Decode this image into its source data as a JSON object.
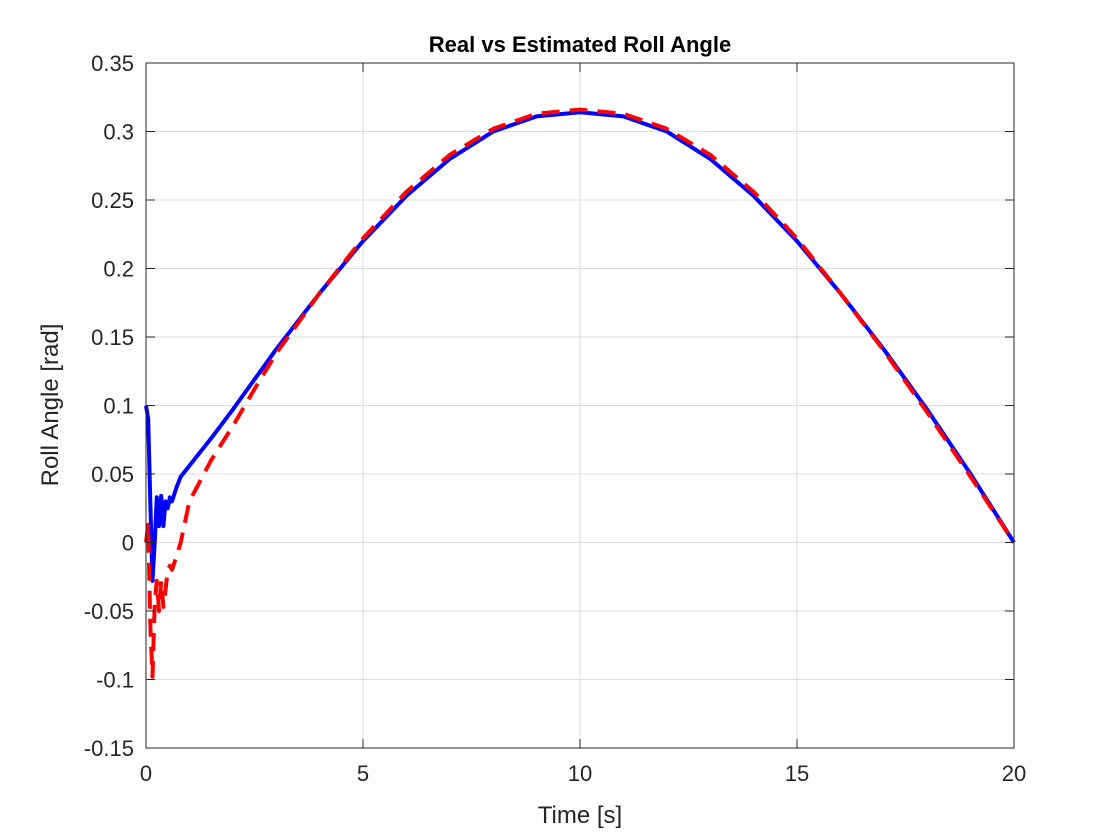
{
  "chart_data": {
    "type": "line",
    "title": "Real vs Estimated Roll Angle",
    "xlabel": "Time [s]",
    "ylabel": "Roll Angle [rad]",
    "xlim": [
      0,
      20
    ],
    "ylim": [
      -0.15,
      0.35
    ],
    "xticks": [
      "0",
      "5",
      "10",
      "15",
      "20"
    ],
    "yticks": [
      "-0.15",
      "-0.1",
      "-0.05",
      "0",
      "0.05",
      "0.1",
      "0.15",
      "0.2",
      "0.25",
      "0.3",
      "0.35"
    ],
    "grid": true,
    "legend": "none",
    "series": [
      {
        "style": "solid",
        "color": "#0000ff",
        "x": [
          0,
          0.05,
          0.1,
          0.15,
          0.2,
          0.25,
          0.3,
          0.35,
          0.4,
          0.45,
          0.5,
          0.55,
          0.6,
          0.7,
          0.8,
          1,
          1.5,
          2,
          3,
          4,
          5,
          6,
          7,
          8,
          9,
          10,
          11,
          12,
          13,
          14,
          15,
          16,
          17,
          18,
          19,
          20
        ],
        "y": [
          0.1,
          0.09,
          0.03,
          -0.028,
          0.0,
          0.033,
          0.012,
          0.034,
          0.012,
          0.03,
          0.025,
          0.033,
          0.03,
          0.04,
          0.048,
          0.056,
          0.076,
          0.097,
          0.141,
          0.182,
          0.22,
          0.253,
          0.28,
          0.3,
          0.311,
          0.314,
          0.311,
          0.3,
          0.28,
          0.253,
          0.22,
          0.182,
          0.141,
          0.097,
          0.05,
          0.0
        ]
      },
      {
        "style": "dashed",
        "color": "#ff0000",
        "x": [
          0,
          0.05,
          0.1,
          0.15,
          0.2,
          0.25,
          0.3,
          0.35,
          0.4,
          0.45,
          0.5,
          0.55,
          0.6,
          0.7,
          0.8,
          1,
          1.5,
          2,
          2.5,
          3,
          4,
          5,
          6,
          7,
          8,
          9,
          10,
          11,
          12,
          13,
          14,
          15,
          16,
          17,
          18,
          19,
          20
        ],
        "y": [
          0.0,
          0.013,
          -0.06,
          -0.098,
          -0.045,
          -0.028,
          -0.05,
          -0.028,
          -0.047,
          -0.035,
          -0.02,
          -0.017,
          -0.02,
          -0.01,
          0.0,
          0.03,
          0.06,
          0.085,
          0.112,
          0.138,
          0.182,
          0.222,
          0.256,
          0.283,
          0.302,
          0.313,
          0.316,
          0.313,
          0.302,
          0.283,
          0.256,
          0.222,
          0.182,
          0.14,
          0.095,
          0.048,
          0.0
        ]
      }
    ]
  }
}
